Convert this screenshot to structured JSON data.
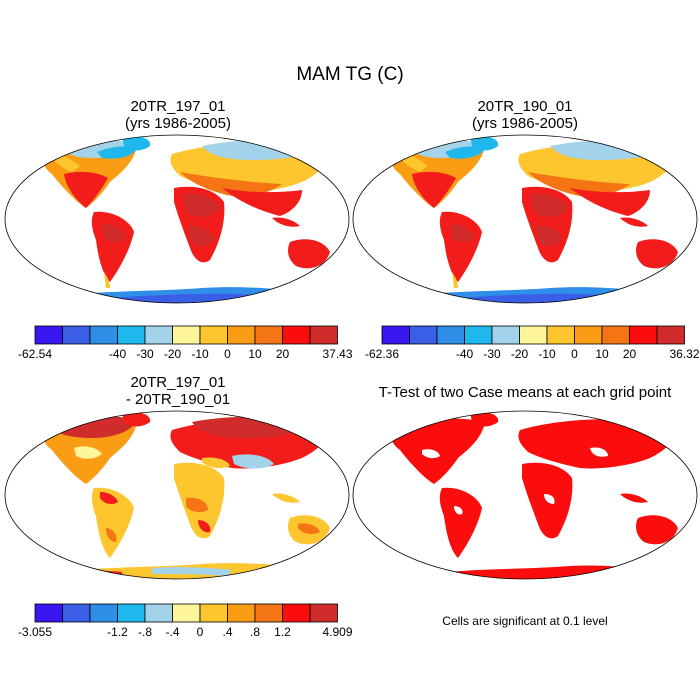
{
  "main_title": "MAM TG (C)",
  "panels": {
    "p1": {
      "title_line1": "20TR_197_01",
      "title_line2": "(yrs 1986-2005)"
    },
    "p2": {
      "title_line1": "20TR_190_01",
      "title_line2": "(yrs 1986-2005)"
    },
    "p3": {
      "title_line1": "20TR_197_01",
      "title_line2": "- 20TR_190_01"
    },
    "p4": {
      "title_line1": "T-Test of two Case means at each grid point"
    }
  },
  "colorbars": {
    "cb1": {
      "colors": [
        "#3a16f0",
        "#3b5ee6",
        "#2f8ee8",
        "#1fb8ec",
        "#a3d3ea",
        "#fff59a",
        "#fdc52e",
        "#fb9d14",
        "#f57514",
        "#fc0d0d",
        "#d02c2c"
      ],
      "labels": [
        "-62.54",
        "-40",
        "-30",
        "-20",
        "-10",
        "0",
        "10",
        "20",
        "37.43"
      ]
    },
    "cb2": {
      "colors": [
        "#3a16f0",
        "#3b5ee6",
        "#2f8ee8",
        "#1fb8ec",
        "#a3d3ea",
        "#fff59a",
        "#fdc52e",
        "#fb9d14",
        "#f57514",
        "#fc0d0d",
        "#d02c2c"
      ],
      "labels": [
        "-62.36",
        "-40",
        "-30",
        "-20",
        "-10",
        "0",
        "10",
        "20",
        "36.32"
      ]
    },
    "cb3": {
      "colors": [
        "#3a16f0",
        "#3b5ee6",
        "#2f8ee8",
        "#1fb8ec",
        "#a3d3ea",
        "#fff59a",
        "#fdc52e",
        "#fb9d14",
        "#f57514",
        "#fc0d0d",
        "#d02c2c"
      ],
      "labels": [
        "-3.055",
        "-1.2",
        "-.8",
        "-.4",
        "0",
        ".4",
        ".8",
        "1.2",
        "4.909"
      ]
    }
  },
  "significance_note": "Cells are significant at 0.1 level",
  "palette": {
    "deep_red": "#d02c2c",
    "red": "#f21d1a",
    "orange": "#f57514",
    "amber": "#fb9d14",
    "gold": "#fdc52e",
    "pale_yellow": "#fff59a",
    "light_blue": "#a3d3ea",
    "sky": "#1fb8ec",
    "blue": "#2f8ee8",
    "cobalt": "#3b5ee6"
  }
}
